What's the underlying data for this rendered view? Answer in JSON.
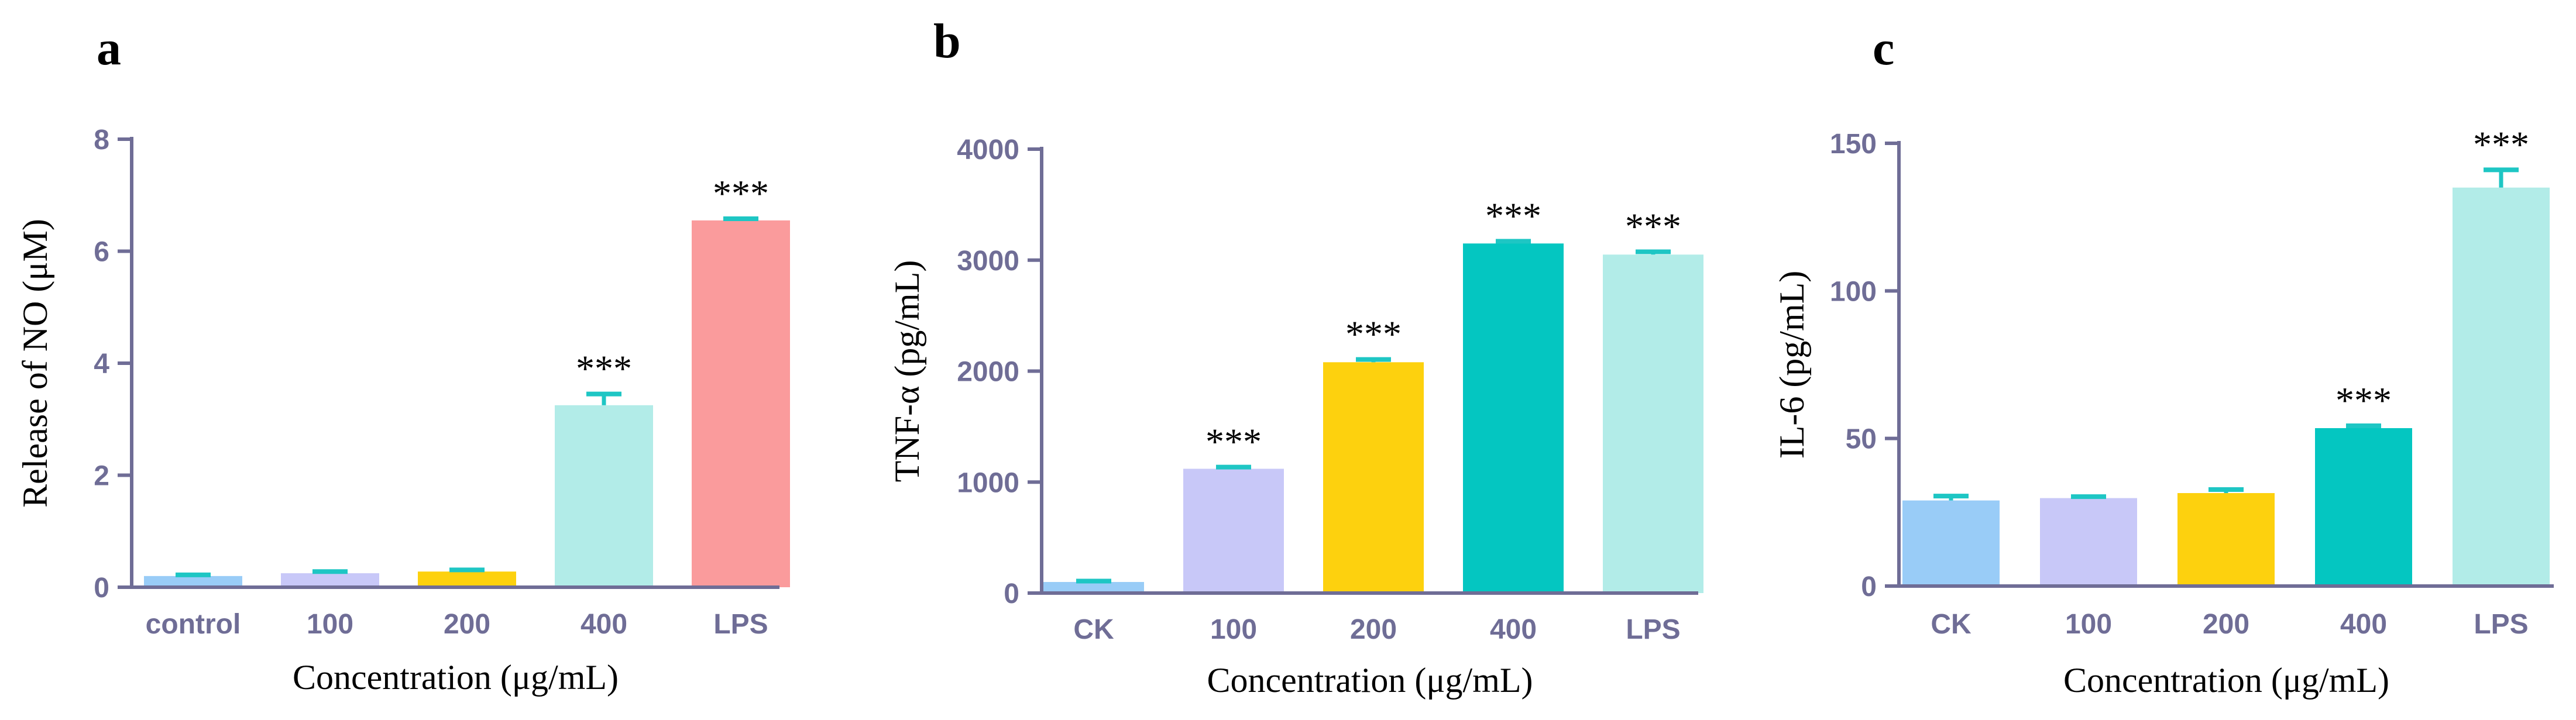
{
  "chart_data": [
    {
      "panel": "a",
      "type": "bar",
      "title": "",
      "ylabel": "Release of NO (μM)",
      "xlabel": "Concentration (μg/mL)",
      "ylim": [
        0,
        8
      ],
      "yticks": [
        0,
        2,
        4,
        6,
        8
      ],
      "categories": [
        "control",
        "100",
        "200",
        "400",
        "LPS"
      ],
      "values": [
        0.2,
        0.25,
        0.28,
        3.25,
        6.55
      ],
      "errors": [
        0.02,
        0.03,
        0.03,
        0.2,
        0.03
      ],
      "significance": [
        "",
        "",
        "",
        "***",
        "***"
      ],
      "colors": [
        "#99ccf7",
        "#c8c8f8",
        "#fdd10e",
        "#b2ece8",
        "#fa9b9c"
      ],
      "error_color": "#1ec6c4"
    },
    {
      "panel": "b",
      "type": "bar",
      "title": "",
      "ylabel": "TNF-α (pg/mL)",
      "xlabel": "Concentration (μg/mL)",
      "ylim": [
        0,
        4000
      ],
      "yticks": [
        0,
        1000,
        2000,
        3000,
        4000
      ],
      "categories": [
        "CK",
        "100",
        "200",
        "400",
        "LPS"
      ],
      "values": [
        100,
        1120,
        2080,
        3150,
        3050
      ],
      "errors": [
        8,
        15,
        25,
        20,
        25
      ],
      "significance": [
        "",
        "***",
        "***",
        "***",
        "***"
      ],
      "colors": [
        "#99ccf7",
        "#c8c8f8",
        "#fdd10e",
        "#04c6c1",
        "#b2ece8"
      ],
      "error_color": "#1ec6c4"
    },
    {
      "panel": "c",
      "type": "bar",
      "title": "",
      "ylabel": "IL-6  (pg/mL)",
      "xlabel": "Concentration (μg/mL)",
      "ylim": [
        0,
        150
      ],
      "yticks": [
        0,
        50,
        100,
        150
      ],
      "categories": [
        "CK",
        "100",
        "200",
        "400",
        "LPS"
      ],
      "values": [
        29,
        29.8,
        31.5,
        53.5,
        135
      ],
      "errors": [
        1.5,
        0.5,
        1.2,
        0.8,
        6
      ],
      "significance": [
        "",
        "",
        "",
        "***",
        "***"
      ],
      "colors": [
        "#99ccf7",
        "#c8c8f8",
        "#fdd10e",
        "#04c6c1",
        "#b2ece8"
      ],
      "error_color": "#1ec6c4"
    }
  ],
  "axis_color": "#6f6d96"
}
